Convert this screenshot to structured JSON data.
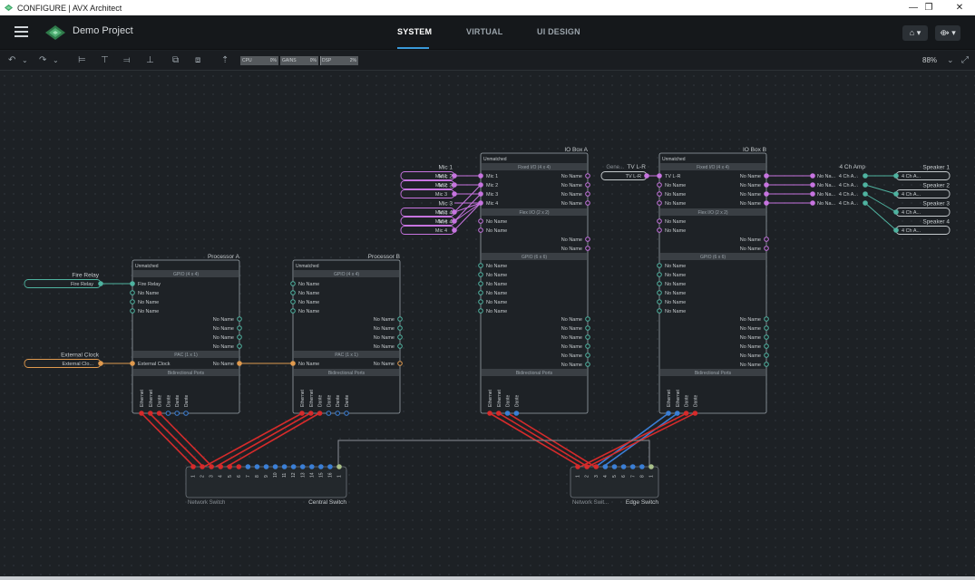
{
  "window": {
    "title": "CONFIGURE | AVX Architect",
    "min": "—",
    "max": "❐",
    "close": "✕"
  },
  "appbar": {
    "project_name": "Demo Project",
    "tabs": [
      {
        "label": "SYSTEM",
        "active": true
      },
      {
        "label": "VIRTUAL",
        "active": false
      },
      {
        "label": "UI DESIGN",
        "active": false
      }
    ],
    "btn_tree": "⌂ ▾",
    "btn_link": "⟴ ▾"
  },
  "toolbar": {
    "meters": [
      {
        "label": "CPU",
        "value": "0%",
        "fraction": 0.0
      },
      {
        "label": "GAINS",
        "value": "0%",
        "fraction": 0.0
      },
      {
        "label": "DSP",
        "value": "2%",
        "fraction": 0.02
      }
    ],
    "zoom": "88%"
  },
  "inputs": {
    "fire_relay": {
      "title": "Fire Relay",
      "value": "Fire Relay"
    },
    "external_clock": {
      "title": "External Clock",
      "value": "External Clo..."
    },
    "mics": [
      {
        "title": "Mic 1",
        "value": "Mic 1"
      },
      {
        "title": "Mic 2",
        "value": "Mic 2"
      },
      {
        "title": "Mic 3",
        "value": "Mic 3"
      },
      {
        "title": "Mic 3",
        "value": "Mic 3"
      },
      {
        "title": "Mic 4",
        "value": "Mic 4"
      },
      {
        "title": "Mic 4",
        "value": "Mic 4"
      }
    ],
    "generic": {
      "title": "Gene...",
      "title2": "TV L-R",
      "value": "TV L-R"
    }
  },
  "processors": [
    {
      "title": "Processor A",
      "status": "Unmatched",
      "gpio": "GPIO (4 x 4)",
      "gpio_in": [
        "Fire Relay",
        "No Name",
        "No Name",
        "No Name"
      ],
      "gpio_out": [
        "No Name",
        "No Name",
        "No Name",
        "No Name"
      ],
      "pac": "PAC (1 x 1)",
      "pac_in": "External Clock",
      "pac_out": "No Name",
      "bidir": "Bidirectional Ports",
      "ports": [
        "Ethernet",
        "Ethernet",
        "Dante",
        "Dante",
        "Dante",
        "Dante"
      ]
    },
    {
      "title": "Processor B",
      "status": "Unmatched",
      "gpio": "GPIO (4 x 4)",
      "gpio_in": [
        "No Name",
        "No Name",
        "No Name",
        "No Name"
      ],
      "gpio_out": [
        "No Name",
        "No Name",
        "No Name",
        "No Name"
      ],
      "pac": "PAC (1 x 1)",
      "pac_in": "No Name",
      "pac_out": "No Name",
      "bidir": "Bidirectional Ports",
      "ports": [
        "Ethernet",
        "Ethernet",
        "Dante",
        "Dante",
        "Dante",
        "Dante"
      ]
    }
  ],
  "ioboxes": [
    {
      "title": "IO Box A",
      "status": "Unmatched",
      "fixed": "Fixed I/O (4 x 4)",
      "fixed_in": [
        "Mic 1",
        "Mic 2",
        "Mic 3",
        "Mic 4"
      ],
      "fixed_out": [
        "No Name",
        "No Name",
        "No Name",
        "No Name"
      ],
      "flex": "Flex I/O (2 x 2)",
      "flex_in": [
        "No Name",
        "No Name"
      ],
      "flex_out": [
        "No Name",
        "No Name"
      ],
      "gpio": "GPIO (6 x 6)",
      "gpio_in": [
        "No Name",
        "No Name",
        "No Name",
        "No Name",
        "No Name",
        "No Name"
      ],
      "gpio_out": [
        "No Name",
        "No Name",
        "No Name",
        "No Name",
        "No Name",
        "No Name"
      ],
      "bidir": "Bidirectional Ports",
      "ports": [
        "Ethernet",
        "Ethernet",
        "Dante",
        "Dante"
      ]
    },
    {
      "title": "IO Box B",
      "status": "Unmatched",
      "fixed": "Fixed I/O (4 x 4)",
      "fixed_in": [
        "TV L-R",
        "No Name",
        "No Name",
        "No Name"
      ],
      "fixed_out": [
        "No Name",
        "No Name",
        "No Name",
        "No Name"
      ],
      "flex": "Flex I/O (2 x 2)",
      "flex_in": [
        "No Name",
        "No Name"
      ],
      "flex_out": [
        "No Name",
        "No Name"
      ],
      "gpio": "GPIO (6 x 6)",
      "gpio_in": [
        "No Name",
        "No Name",
        "No Name",
        "No Name",
        "No Name",
        "No Name"
      ],
      "gpio_out": [
        "No Name",
        "No Name",
        "No Name",
        "No Name",
        "No Name",
        "No Name"
      ],
      "bidir": "Bidirectional Ports",
      "ports": [
        "Ethernet",
        "Ethernet",
        "Dante",
        "Dante"
      ]
    }
  ],
  "amp": {
    "title": "4 Ch Amp",
    "in": [
      "No Na...",
      "No Na...",
      "No Na...",
      "No Na..."
    ],
    "out": [
      "4 Ch A...",
      "4 Ch A...",
      "4 Ch A...",
      "4 Ch A..."
    ]
  },
  "speakers": [
    {
      "title": "Speaker 1",
      "value": "4 Ch A..."
    },
    {
      "title": "Speaker 2",
      "value": "4 Ch A..."
    },
    {
      "title": "Speaker 3",
      "value": "4 Ch A..."
    },
    {
      "title": "Speaker 4",
      "value": "4 Ch A..."
    }
  ],
  "switches": [
    {
      "type": "Network Switch",
      "title": "Central Switch",
      "ports": [
        "1",
        "2",
        "3",
        "4",
        "5",
        "6",
        "7",
        "8",
        "9",
        "10",
        "11",
        "12",
        "13",
        "14",
        "15",
        "16",
        "1"
      ]
    },
    {
      "type": "Network Swit...",
      "title": "Edge Switch",
      "ports": [
        "1",
        "2",
        "3",
        "4",
        "5",
        "6",
        "7",
        "8",
        "1"
      ]
    }
  ],
  "colors": {
    "accent": "#3a9ad9",
    "gpio": "#4fb3a0",
    "pac": "#e09a4e",
    "audio": "#c774e0",
    "dante": "#3b7fd6",
    "ethernet": "#d62b2b",
    "node_bg": "#1e2226",
    "node_border": "#9aa3aa"
  }
}
